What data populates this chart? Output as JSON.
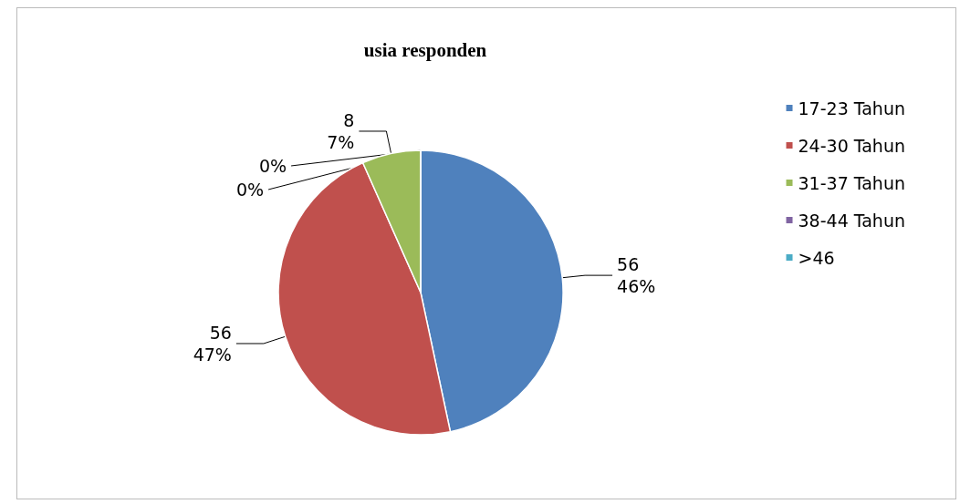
{
  "chart_data": {
    "type": "pie",
    "title": "usia responden",
    "categories": [
      "17-23 Tahun",
      "24-30 Tahun",
      "31-37 Tahun",
      "38-44 Tahun",
      ">46"
    ],
    "values": [
      56,
      56,
      8,
      0,
      0
    ],
    "colors": [
      "#4f81bd",
      "#c0504d",
      "#9bbb59",
      "#8064a2",
      "#4bacc6"
    ],
    "value_labels": [
      "56\n46%",
      "56\n47%",
      "8\n7%",
      "0%",
      "0%"
    ],
    "legend": "right"
  }
}
